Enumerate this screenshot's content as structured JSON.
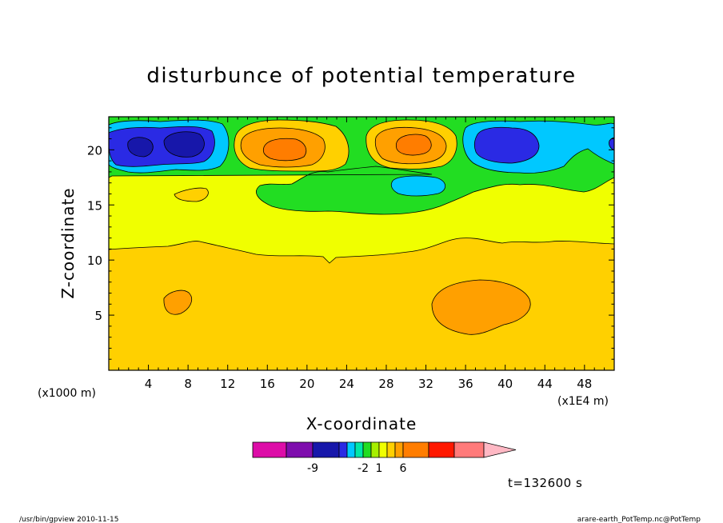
{
  "chart_data": {
    "type": "heatmap",
    "subtype": "filled-contour",
    "title": "disturbunce of potential temperature",
    "xlabel": "X-coordinate",
    "ylabel": "Z-coordinate",
    "x_unit_left": "(x1000 m)",
    "x_unit_right": "(x1E4 m)",
    "xlim": [
      0,
      51
    ],
    "ylim": [
      0,
      23
    ],
    "x_ticks": [
      4,
      8,
      12,
      16,
      20,
      24,
      28,
      32,
      36,
      40,
      44,
      48
    ],
    "y_ticks": [
      5,
      10,
      15,
      20
    ],
    "time_label": "t=132600 s",
    "colorbar": {
      "colors": [
        "#dd0da8",
        "#7e0dad",
        "#1717aa",
        "#2a2ae4",
        "#00c8ff",
        "#00e7a8",
        "#22dd22",
        "#a6ef00",
        "#f0ff00",
        "#ffd000",
        "#ffa000",
        "#ff7d00",
        "#ff1800",
        "#ff7a7a",
        "#ffb8c4"
      ],
      "tick_labels": [
        {
          "label": "-9",
          "index": 2
        },
        {
          "label": "-2",
          "index": 6
        },
        {
          "label": "1",
          "index": 8
        },
        {
          "label": "6",
          "index": 11
        }
      ]
    },
    "regions": [
      {
        "level": "orange-yellow",
        "color": "#ffd000",
        "note": "z below ~11"
      },
      {
        "level": "yellow",
        "color": "#f0ff00",
        "note": "z ~11 to ~17"
      },
      {
        "level": "green",
        "color": "#22dd22",
        "note": "z above ~17"
      },
      {
        "level": "cyan",
        "color": "#00c8ff"
      },
      {
        "level": "blue",
        "color": "#2a2ae4"
      },
      {
        "level": "dark-blue",
        "color": "#1717aa"
      },
      {
        "level": "orange",
        "color": "#ffa000"
      },
      {
        "level": "dark-orange",
        "color": "#ff7d00"
      }
    ]
  },
  "footer": {
    "left": "/usr/bin/gpview  2010-11-15",
    "right": "arare-earth_PotTemp.nc@PotTemp"
  }
}
